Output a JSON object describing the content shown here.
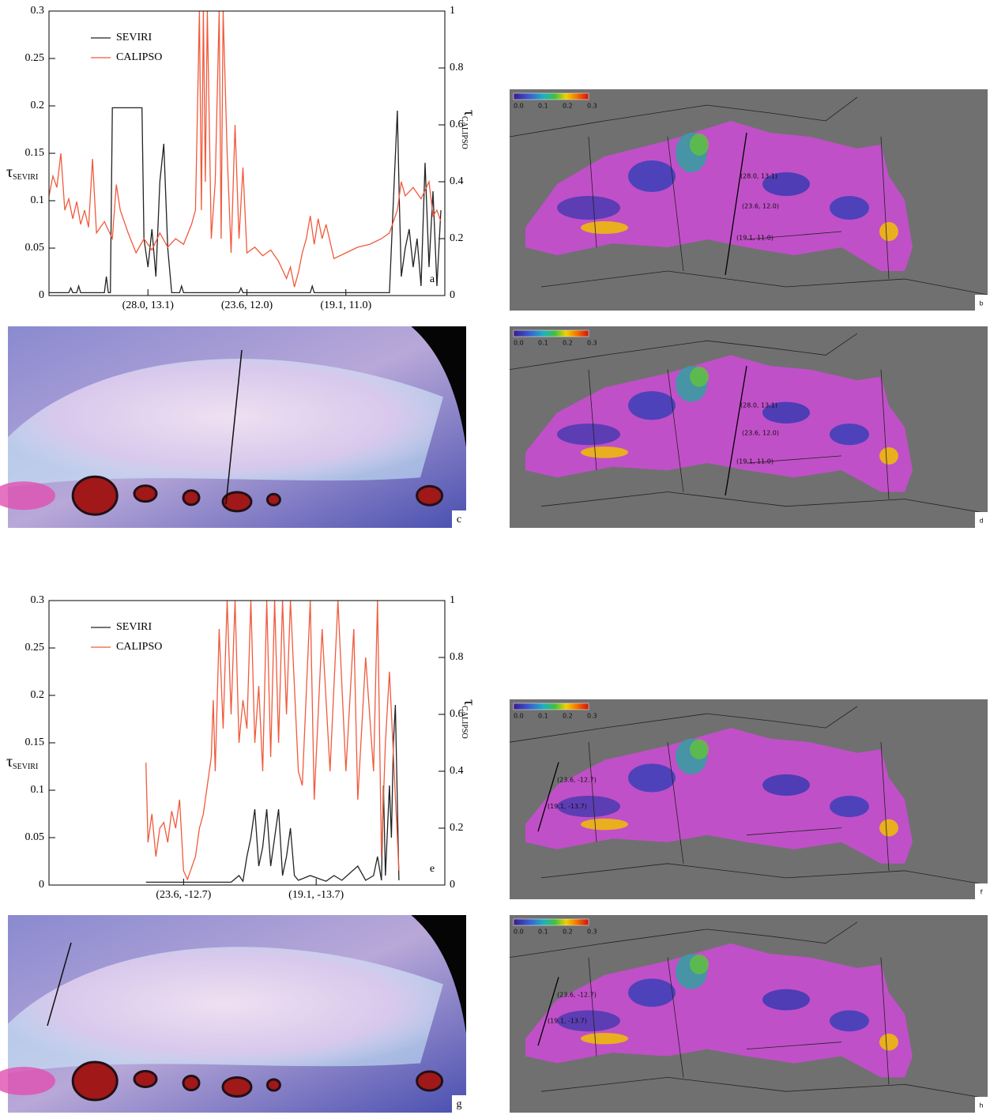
{
  "chart_data": [
    {
      "type": "line",
      "panel_label": "a",
      "ylabel": "τ",
      "ylabel_subscript": "SEVIRI",
      "y2label": "τ",
      "y2label_subscript": "CALIPSO",
      "legend": "upper left",
      "xlim": [
        0,
        100
      ],
      "xticks": [
        {
          "value": 25,
          "label": "(28.0, 13.1)"
        },
        {
          "value": 50,
          "label": "(23.6, 12.0)"
        },
        {
          "value": 75,
          "label": "(19.1, 11.0)"
        }
      ],
      "ylim": [
        0,
        0.3
      ],
      "yticks": [
        0,
        0.05,
        0.1,
        0.15,
        0.2,
        0.25,
        0.3
      ],
      "y2lim": [
        0,
        1
      ],
      "y2ticks": [
        0,
        0.2,
        0.4,
        0.6,
        0.8,
        1
      ],
      "series": [
        {
          "name": "SEVIRI",
          "color": "#222222",
          "x": [
            0,
            5,
            5.5,
            6,
            7,
            7.5,
            8,
            9,
            10,
            14,
            14.5,
            15,
            15.5,
            16,
            23,
            23.5,
            24,
            25,
            26,
            27,
            28,
            29,
            30,
            31,
            33,
            33.5,
            34,
            34.5,
            48,
            48.5,
            49,
            66,
            66.5,
            67,
            86,
            87,
            88,
            88.5,
            89,
            90,
            91,
            92,
            93,
            94,
            95,
            96,
            97,
            98,
            99
          ],
          "values": [
            0.003,
            0.003,
            0.008,
            0.003,
            0.003,
            0.01,
            0.003,
            0.003,
            0.003,
            0.003,
            0.02,
            0.003,
            0.003,
            0.198,
            0.198,
            0.198,
            0.06,
            0.03,
            0.07,
            0.02,
            0.12,
            0.16,
            0.05,
            0.003,
            0.003,
            0.01,
            0.003,
            0.003,
            0.003,
            0.008,
            0.003,
            0.003,
            0.01,
            0.003,
            0.003,
            0.1,
            0.195,
            0.1,
            0.02,
            0.05,
            0.07,
            0.03,
            0.06,
            0.01,
            0.14,
            0.03,
            0.11,
            0.01,
            0.09
          ]
        },
        {
          "name": "CALIPSO",
          "color": "#f05a3c",
          "axis": "y2",
          "x": [
            0,
            1,
            2,
            3,
            4,
            5,
            6,
            7,
            8,
            9,
            10,
            11,
            12,
            14,
            16,
            17,
            18,
            20,
            22,
            24,
            26,
            28,
            30,
            32,
            34,
            36,
            37,
            38,
            38.5,
            39,
            39.5,
            40,
            41,
            42,
            43,
            43.5,
            44,
            45,
            46,
            47,
            48,
            49,
            50,
            52,
            54,
            56,
            58,
            60,
            61,
            62,
            63,
            64,
            65,
            66,
            67,
            68,
            69,
            70,
            72,
            75,
            78,
            81,
            84,
            86,
            88,
            89,
            90,
            92,
            94,
            96,
            97,
            98,
            99
          ],
          "values": [
            0.35,
            0.42,
            0.38,
            0.5,
            0.3,
            0.34,
            0.27,
            0.33,
            0.25,
            0.3,
            0.24,
            0.48,
            0.22,
            0.26,
            0.2,
            0.39,
            0.3,
            0.22,
            0.15,
            0.2,
            0.16,
            0.22,
            0.17,
            0.2,
            0.18,
            0.25,
            0.3,
            1.0,
            0.3,
            1.0,
            0.4,
            1.0,
            0.2,
            0.4,
            1.0,
            0.2,
            1.0,
            0.5,
            0.15,
            0.6,
            0.2,
            0.45,
            0.15,
            0.17,
            0.14,
            0.16,
            0.12,
            0.06,
            0.1,
            0.03,
            0.08,
            0.15,
            0.2,
            0.28,
            0.18,
            0.27,
            0.2,
            0.25,
            0.13,
            0.15,
            0.17,
            0.18,
            0.2,
            0.22,
            0.3,
            0.4,
            0.35,
            0.38,
            0.34,
            0.4,
            0.28,
            0.3,
            0.26
          ]
        }
      ]
    },
    {
      "type": "line",
      "panel_label": "e",
      "ylabel": "τ",
      "ylabel_subscript": "SEVIRI",
      "y2label": "τ",
      "y2label_subscript": "CALIPSO",
      "legend": "upper left",
      "xlim": [
        0,
        100
      ],
      "xticks": [
        {
          "value": 34,
          "label": "(23.6, -12.7)"
        },
        {
          "value": 67.5,
          "label": "(19.1, -13.7)"
        }
      ],
      "ylim": [
        0,
        0.3
      ],
      "yticks": [
        0,
        0.05,
        0.1,
        0.15,
        0.2,
        0.25,
        0.3
      ],
      "y2lim": [
        0,
        1
      ],
      "y2ticks": [
        0,
        0.2,
        0.4,
        0.6,
        0.8,
        1
      ],
      "series": [
        {
          "name": "SEVIRI",
          "color": "#222222",
          "x": [
            24.5,
            30,
            40,
            46,
            48,
            49,
            50,
            51,
            52,
            53,
            54,
            55,
            56,
            57,
            58,
            59,
            60,
            61,
            62,
            63,
            66,
            70,
            72,
            74,
            78,
            80,
            82,
            83,
            84,
            84.5,
            85,
            86,
            86.5,
            87,
            87.5,
            88.4
          ],
          "values": [
            0.003,
            0.003,
            0.003,
            0.003,
            0.01,
            0.004,
            0.03,
            0.05,
            0.08,
            0.02,
            0.04,
            0.08,
            0.02,
            0.05,
            0.08,
            0.01,
            0.03,
            0.06,
            0.01,
            0.005,
            0.01,
            0.004,
            0.01,
            0.005,
            0.02,
            0.005,
            0.01,
            0.03,
            0.005,
            0.105,
            0.01,
            0.105,
            0.05,
            0.15,
            0.19,
            0.005
          ]
        },
        {
          "name": "CALIPSO",
          "color": "#f05a3c",
          "axis": "y2",
          "x": [
            24.5,
            25,
            26,
            27,
            28,
            29,
            30,
            31,
            32,
            33,
            34,
            35,
            37,
            38,
            39,
            40,
            41,
            41.5,
            42,
            43,
            44,
            45,
            46,
            47,
            48,
            49,
            50,
            51,
            52,
            53,
            54,
            55,
            56,
            57,
            58,
            59,
            60,
            61,
            63,
            64,
            66,
            67,
            69,
            71,
            73,
            75,
            77,
            78,
            80,
            82,
            83,
            84,
            85,
            86,
            88.4
          ],
          "values": [
            0.43,
            0.15,
            0.25,
            0.1,
            0.2,
            0.22,
            0.15,
            0.26,
            0.2,
            0.3,
            0.05,
            0.02,
            0.1,
            0.2,
            0.25,
            0.35,
            0.45,
            0.65,
            0.4,
            0.9,
            0.55,
            1.0,
            0.6,
            1.0,
            0.5,
            0.65,
            0.55,
            1.0,
            0.5,
            0.7,
            0.4,
            1.0,
            0.45,
            1.0,
            0.5,
            1.0,
            0.6,
            1.0,
            0.4,
            0.35,
            1.0,
            0.3,
            0.9,
            0.4,
            1.0,
            0.4,
            0.9,
            0.3,
            0.8,
            0.4,
            1.0,
            0.1,
            0.5,
            0.75,
            0.05
          ]
        }
      ]
    }
  ],
  "images": [
    {
      "label": "c"
    },
    {
      "label": "g"
    }
  ],
  "maps": [
    {
      "label": "b",
      "colorbar_ticks": [
        "0.0",
        "0.1",
        "0.2",
        "0.3"
      ],
      "annotations": [
        "(28.0, 13.1)",
        "(23.6, 12.0)",
        "(19.1, 11.0)"
      ]
    },
    {
      "label": "d",
      "colorbar_ticks": [
        "0.0",
        "0.1",
        "0.2",
        "0.3"
      ],
      "annotations": [
        "(28.0, 13.1)",
        "(23.6, 12.0)",
        "(19.1, 11.0)"
      ]
    },
    {
      "label": "f",
      "colorbar_ticks": [
        "0.0",
        "0.1",
        "0.2",
        "0.3"
      ],
      "annotations": [
        "(23.6, -12.7)",
        "(19.1, -13.7)"
      ]
    },
    {
      "label": "h",
      "colorbar_ticks": [
        "0.0",
        "0.1",
        "0.2",
        "0.3"
      ],
      "annotations": [
        "(23.6, -12.7)",
        "(19.1, -13.7)"
      ]
    }
  ]
}
